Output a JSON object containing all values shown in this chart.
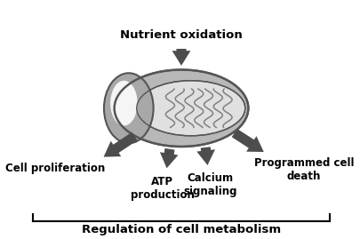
{
  "bg_color": "#ffffff",
  "arrow_color": "#4d4d4d",
  "nutrient_oxidation": "Nutrient oxidation",
  "labels": {
    "cell_proliferation": "Cell proliferation",
    "atp": "ATP\nproduction",
    "calcium": "Calcium\nsignaling",
    "programmed": "Programmed cell\ndeath",
    "bottom": "Regulation of cell metabolism"
  },
  "mitochondria_outer_color": "#b8b8b8",
  "mitochondria_inner_color": "#e0e0e0",
  "mitochondria_cap_color": "#a8a8a8",
  "cristae_color": "#808080"
}
